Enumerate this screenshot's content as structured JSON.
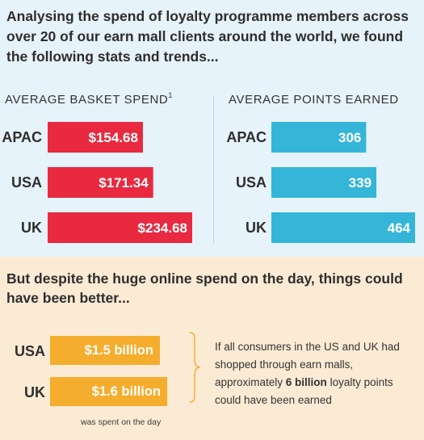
{
  "intro": "Analysing the spend of loyalty programme members across over 20 of our earn mall clients around the world, we found the following stats and trends...",
  "chart_data": [
    {
      "type": "bar",
      "orientation": "horizontal",
      "title": "AVERAGE BASKET SPEND",
      "title_sup": "1",
      "categories": [
        "APAC",
        "USA",
        "UK"
      ],
      "values": [
        154.68,
        171.34,
        234.68
      ],
      "value_labels": [
        "$154.68",
        "$171.34",
        "$234.68"
      ],
      "color": "#e8293f"
    },
    {
      "type": "bar",
      "orientation": "horizontal",
      "title": "AVERAGE POINTS EARNED",
      "categories": [
        "APAC",
        "USA",
        "UK"
      ],
      "values": [
        306,
        339,
        464
      ],
      "value_labels": [
        "306",
        "339",
        "464"
      ],
      "color": "#35b6d8"
    },
    {
      "type": "bar",
      "orientation": "horizontal",
      "categories": [
        "USA",
        "UK"
      ],
      "values": [
        1.5,
        1.6
      ],
      "value_labels": [
        "$1.5 billion",
        "$1.6 billion"
      ],
      "color": "#f5ad2d"
    }
  ],
  "despite": "But despite the huge online spend on the day, things could have been better...",
  "caption": "was spent on the day",
  "note": {
    "before": "If all consumers in the US and UK had shopped through earn malls, approximately ",
    "highlight": "6 billion",
    "after": " loyalty points could have been earned"
  },
  "colors": {
    "top_background": "#e7f3fa",
    "bottom_background": "#fcebd4",
    "spend_bar": "#e8293f",
    "points_bar": "#35b6d8",
    "billion_bar": "#f5ad2d"
  }
}
